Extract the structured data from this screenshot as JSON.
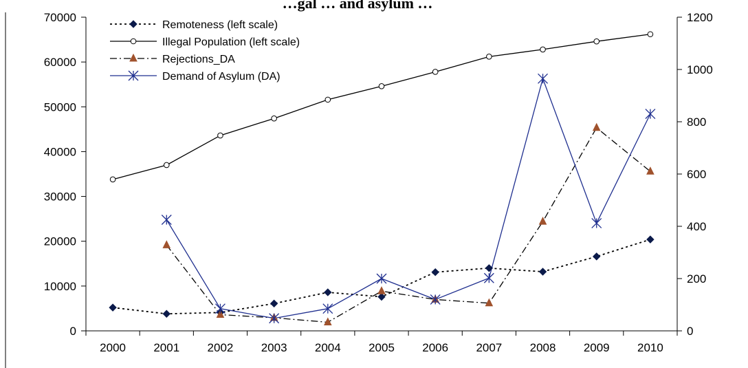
{
  "chart_data": {
    "type": "line",
    "title": "",
    "title_fragment": "…gal … and asylum …",
    "xlabel": "",
    "ylabel_left": "",
    "ylabel_right": "",
    "categories": [
      "2000",
      "2001",
      "2002",
      "2003",
      "2004",
      "2005",
      "2006",
      "2007",
      "2008",
      "2009",
      "2010"
    ],
    "y_left": {
      "range": [
        0,
        70000
      ],
      "ticks": [
        0,
        10000,
        20000,
        30000,
        40000,
        50000,
        60000,
        70000
      ]
    },
    "y_right": {
      "range": [
        0,
        1200
      ],
      "ticks": [
        0,
        200,
        400,
        600,
        800,
        1000,
        1200
      ]
    },
    "grid": false,
    "legend_position": "top-left",
    "series": [
      {
        "name": "Remoteness (left scale)",
        "axis": "left",
        "line_style": "dotted",
        "marker": "diamond",
        "color": "#000000",
        "values": [
          5200,
          3800,
          4100,
          6100,
          8600,
          7600,
          13100,
          14000,
          13200,
          16600,
          20400
        ]
      },
      {
        "name": "Illegal Population (left scale)",
        "axis": "left",
        "line_style": "solid",
        "marker": "circle",
        "color": "#000000",
        "values": [
          33800,
          37000,
          43600,
          47400,
          51600,
          54600,
          57800,
          61200,
          62800,
          64600,
          66200
        ]
      },
      {
        "name": "Rejections_DA",
        "axis": "right",
        "line_style": "dash-dot",
        "marker": "triangle",
        "color": "#000000",
        "marker_color": "#a0522d",
        "values": [
          null,
          328,
          62,
          50,
          33,
          152,
          120,
          106,
          418,
          777,
          610
        ]
      },
      {
        "name": "Demand of Asylum (DA)",
        "axis": "right",
        "line_style": "solid",
        "marker": "star",
        "color": "#1f2f8f",
        "values": [
          null,
          425,
          85,
          48,
          85,
          200,
          120,
          202,
          965,
          412,
          830
        ]
      }
    ]
  }
}
